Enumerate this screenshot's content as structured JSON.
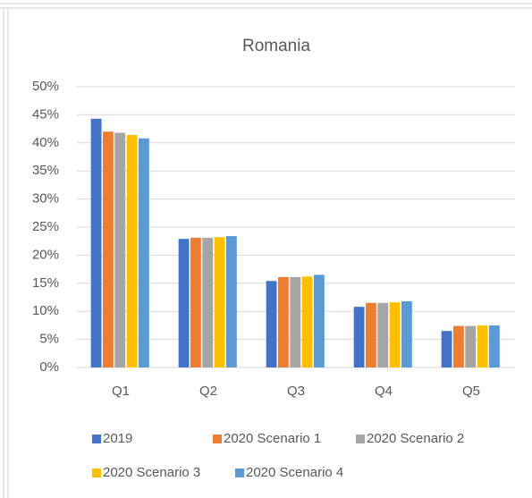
{
  "chart_data": {
    "type": "bar",
    "title": "Romania",
    "categories": [
      "Q1",
      "Q2",
      "Q3",
      "Q4",
      "Q5"
    ],
    "series": [
      {
        "name": "2019",
        "color": "#4472c4",
        "values": [
          44.3,
          22.9,
          15.4,
          10.8,
          6.5
        ]
      },
      {
        "name": "2020 Scenario 1",
        "color": "#ed7d31",
        "values": [
          42.0,
          23.1,
          16.1,
          11.5,
          7.4
        ]
      },
      {
        "name": "2020 Scenario 2",
        "color": "#a5a5a5",
        "values": [
          41.8,
          23.1,
          16.1,
          11.5,
          7.4
        ]
      },
      {
        "name": "2020 Scenario 3",
        "color": "#ffc000",
        "values": [
          41.4,
          23.2,
          16.2,
          11.6,
          7.5
        ]
      },
      {
        "name": "2020 Scenario 4",
        "color": "#5b9bd5",
        "values": [
          40.8,
          23.4,
          16.5,
          11.8,
          7.5
        ]
      }
    ],
    "ylim": [
      0,
      50
    ],
    "yticks": [
      {
        "value": 0,
        "label": "0%"
      },
      {
        "value": 5,
        "label": "5%"
      },
      {
        "value": 10,
        "label": "10%"
      },
      {
        "value": 15,
        "label": "15%"
      },
      {
        "value": 20,
        "label": "20%"
      },
      {
        "value": 25,
        "label": "25%"
      },
      {
        "value": 30,
        "label": "30%"
      },
      {
        "value": 35,
        "label": "35%"
      },
      {
        "value": 40,
        "label": "40%"
      },
      {
        "value": 45,
        "label": "45%"
      },
      {
        "value": 50,
        "label": "50%"
      }
    ],
    "grid": true,
    "legend": "bottom"
  }
}
